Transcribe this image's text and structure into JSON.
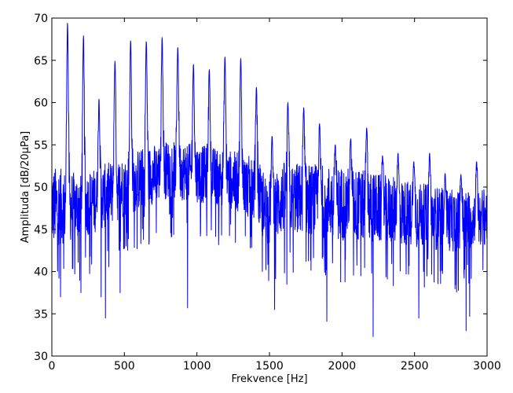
{
  "chart_data": {
    "type": "line",
    "title": "",
    "xlabel": "Frekvence [Hz]",
    "ylabel": "Amplituda [dB/20μPa]",
    "xlim": [
      0,
      3000
    ],
    "ylim": [
      30,
      70
    ],
    "xticks": [
      0,
      500,
      1000,
      1500,
      2000,
      2500,
      3000
    ],
    "yticks": [
      30,
      35,
      40,
      45,
      50,
      55,
      60,
      65,
      70
    ],
    "grid": false,
    "legend": "none",
    "colors": {
      "series": "#0000ff",
      "axes": "#000000",
      "background": "#ffffff"
    },
    "peaks": [
      {
        "x": 108,
        "y": 69.4
      },
      {
        "x": 218,
        "y": 67.9
      },
      {
        "x": 325,
        "y": 60.4
      },
      {
        "x": 435,
        "y": 64.9
      },
      {
        "x": 543,
        "y": 67.3
      },
      {
        "x": 651,
        "y": 67.2
      },
      {
        "x": 760,
        "y": 67.7
      },
      {
        "x": 868,
        "y": 66.5
      },
      {
        "x": 976,
        "y": 64.5
      },
      {
        "x": 1085,
        "y": 63.9
      },
      {
        "x": 1193,
        "y": 65.4
      },
      {
        "x": 1302,
        "y": 65.2
      },
      {
        "x": 1410,
        "y": 61.8
      },
      {
        "x": 1518,
        "y": 56.0
      },
      {
        "x": 1627,
        "y": 60.0
      },
      {
        "x": 1736,
        "y": 59.4
      },
      {
        "x": 1845,
        "y": 57.5
      },
      {
        "x": 1953,
        "y": 55.0
      },
      {
        "x": 2060,
        "y": 55.7
      },
      {
        "x": 2170,
        "y": 57.0
      },
      {
        "x": 2279,
        "y": 53.7
      },
      {
        "x": 2386,
        "y": 54.0
      },
      {
        "x": 2495,
        "y": 53.0
      },
      {
        "x": 2604,
        "y": 54.0
      },
      {
        "x": 2711,
        "y": 51.6
      },
      {
        "x": 2820,
        "y": 51.5
      },
      {
        "x": 2928,
        "y": 53.0
      }
    ],
    "dips": [
      {
        "x": 60,
        "y": 37.0
      },
      {
        "x": 200,
        "y": 37.5
      },
      {
        "x": 340,
        "y": 37.0
      },
      {
        "x": 370,
        "y": 34.5
      },
      {
        "x": 470,
        "y": 37.5
      },
      {
        "x": 935,
        "y": 35.7
      },
      {
        "x": 1535,
        "y": 35.5
      },
      {
        "x": 1620,
        "y": 38.5
      },
      {
        "x": 1895,
        "y": 34.1
      },
      {
        "x": 2215,
        "y": 32.3
      },
      {
        "x": 2530,
        "y": 34.5
      },
      {
        "x": 2855,
        "y": 33.0
      },
      {
        "x": 2880,
        "y": 34.7
      }
    ],
    "envelope": {
      "x": [
        0,
        200,
        400,
        600,
        800,
        1000,
        1200,
        1400,
        1500,
        1600,
        2000,
        2400,
        2800,
        3000
      ],
      "upper": [
        52.5,
        51.5,
        53.0,
        54.5,
        55.5,
        55.0,
        54.5,
        53.5,
        51.0,
        53.0,
        52.5,
        51.0,
        49.5,
        50.0
      ],
      "lower": [
        40.5,
        42.0,
        43.5,
        45.5,
        47.0,
        46.5,
        46.0,
        44.0,
        40.5,
        42.5,
        41.5,
        41.0,
        40.5,
        41.5
      ]
    }
  }
}
